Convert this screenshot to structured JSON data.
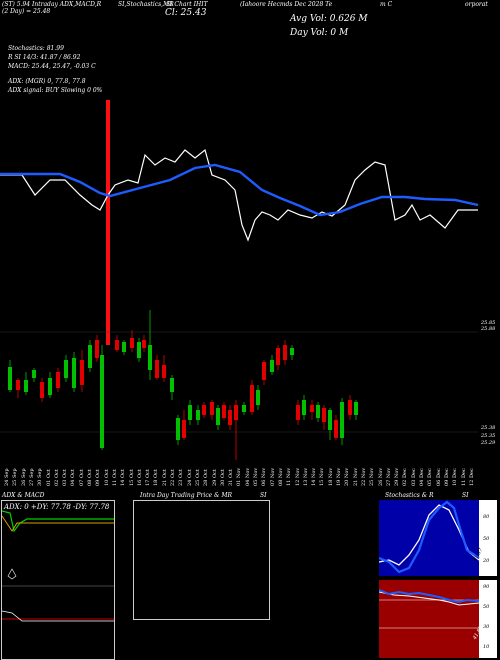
{
  "header": {
    "ticker_line": "(ST) 5.94 Intraday ADX,MACD,R",
    "day_line": "(2 Day) = 25.48",
    "si_label": "SI,Stochastics,MR",
    "cl_label": "Cl: 25.43",
    "tick_label": "SI Chart IHIT",
    "company": "(Iahoore Hecmds Dec 2028 Te",
    "avg_vol": "Avg Vol: 0.626  M",
    "day_vol": "Day Vol: 0  M",
    "corporat": "m C",
    "corporat2": "orporat"
  },
  "indicators": {
    "stochastics": "Stochastics: 81.99",
    "r_si": "R                    SI 14/3: 41.87 / 86.92",
    "macd": "MACD: 25.44,  25.47,  -0.03 C",
    "adx": "ADX:                         (MGR) 0,  77.8,  77.8",
    "adx_signal": "ADX  signal:                              BUY Slowing 0 0%"
  },
  "price_axis": {
    "top_a": "25.85",
    "top_b": "25.88",
    "bottom_a": "25.38",
    "bottom_b": "25.35",
    "bottom_c": "25.29"
  },
  "x_dates": [
    "24 Sep",
    "25 Sep",
    "26 Sep",
    "27 Sep",
    "30 Sep",
    "01 Oct",
    "02 Oct",
    "03 Oct",
    "04 Oct",
    "07 Oct",
    "08 Oct",
    "09 Oct",
    "10 Oct",
    "11 Oct",
    "14 Oct",
    "15 Oct",
    "16 Oct",
    "17 Oct",
    "18 Oct",
    "21 Oct",
    "22 Oct",
    "23 Oct",
    "24 Oct",
    "25 Oct",
    "28 Oct",
    "29 Oct",
    "30 Oct",
    "31 Oct",
    "01 Nov",
    "04 Nov",
    "05 Nov",
    "06 Nov",
    "07 Nov",
    "08 Nov",
    "11 Nov",
    "12 Nov",
    "13 Nov",
    "14 Nov",
    "15 Nov",
    "18 Nov",
    "19 Nov",
    "20 Nov",
    "21 Nov",
    "22 Nov",
    "25 Nov",
    "26 Nov",
    "27 Nov",
    "29 Nov",
    "02 Dec",
    "03 Dec",
    "04 Dec",
    "05 Dec",
    "06 Dec",
    "09 Dec",
    "10 Dec",
    "11 Dec",
    "12 Dec"
  ],
  "panels": {
    "adx_title": "ADX  & MACD",
    "adx_values": "ADX: 0   +DY: 77.78   -DY: 77.78",
    "intraday_title": "Intra  Day Trading Price  & MR",
    "intraday_si": "SI",
    "stoch_title": "Stochastics & R",
    "stoch_si": "SI",
    "stoch_axis": [
      "80",
      "50",
      "20"
    ],
    "stoch_marker": "41.87",
    "si_axis": [
      "90",
      "50",
      "30",
      "10"
    ],
    "si_marker": "41.87"
  },
  "colors": {
    "price_line": "#ffffff",
    "ma_line": "#1f5cff",
    "up_candle": "#00c000",
    "down_candle": "#e00000",
    "si_panel_bg": "#9b0000",
    "stoch_panel_bg": "#ffffff"
  }
}
